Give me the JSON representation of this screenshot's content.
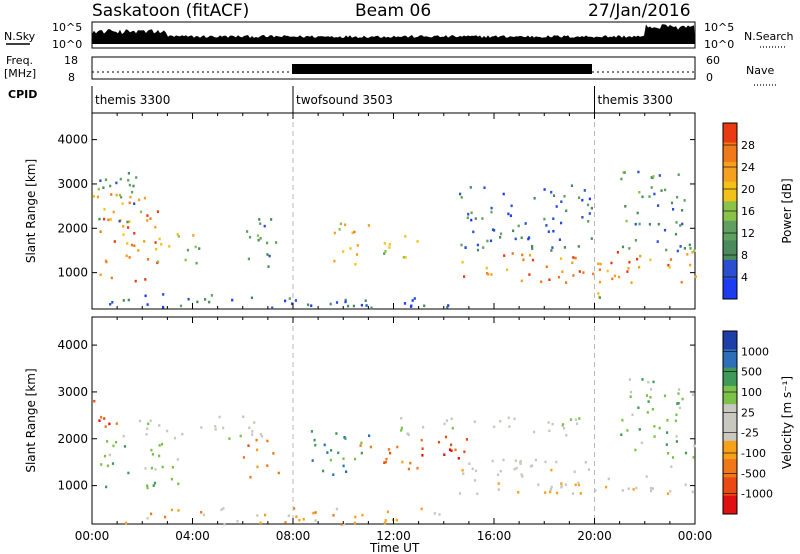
{
  "header": {
    "station": "Saskatoon (fitACF)",
    "beam": "Beam 06",
    "date": "27/Jan/2016"
  },
  "top_panels": {
    "nsky_label": "N.Sky",
    "nsky_ticks": [
      "10^5",
      "10^0"
    ],
    "nsearch_label": "N.Search",
    "freq_label_1": "Freq.",
    "freq_label_2": "[MHz]",
    "freq_ticks": [
      "18",
      "8"
    ],
    "nave_ticks": [
      "60",
      "0"
    ],
    "nave_label": "Nave",
    "cpid_label": "CPID",
    "cpid_segments": [
      {
        "name": "themis 3300",
        "start": 0,
        "end": 8
      },
      {
        "name": "twofsound 3503",
        "start": 8,
        "end": 20
      },
      {
        "name": "themis 3300",
        "start": 20,
        "end": 24
      }
    ]
  },
  "colors": {
    "power_scale": [
      "#1b3cf0",
      "#2a4fd0",
      "#4b8a5a",
      "#5fa060",
      "#8bc34a",
      "#f2c21a",
      "#f5a020",
      "#f07a1a",
      "#ea3a12"
    ],
    "velocity_scale": [
      "#1f3fa8",
      "#2c6fb8",
      "#3f9a5a",
      "#7cc24a",
      "#c8c8c0",
      "#c8c8c0",
      "#f7a01a",
      "#f07818",
      "#ea4a12",
      "#e01010"
    ],
    "grid_line": "#b8b8b8"
  },
  "chart_data": [
    {
      "type": "heatmap",
      "name": "power",
      "ylabel": "Slant Range [km]",
      "colorbar_label": "Power [dB]",
      "colorbar_ticks": [
        "28",
        "24",
        "20",
        "16",
        "12",
        "8",
        "4"
      ],
      "colorbar_range": [
        0,
        32
      ],
      "yticks": [
        "4000",
        "3000",
        "2000",
        "1000"
      ],
      "ylim": [
        180,
        4600
      ],
      "xlim": [
        0,
        24
      ],
      "scatter_regions": [
        {
          "t0": 0.0,
          "t1": 2.6,
          "r0": 800,
          "r1": 2800,
          "level": 26
        },
        {
          "t0": 0.2,
          "t1": 2.0,
          "r0": 2000,
          "r1": 3300,
          "level": 10
        },
        {
          "t0": 2.4,
          "t1": 4.4,
          "r0": 1100,
          "r1": 1900,
          "level": 16
        },
        {
          "t0": 6.0,
          "t1": 7.4,
          "r0": 1000,
          "r1": 2300,
          "level": 12
        },
        {
          "t0": 9.4,
          "t1": 11.0,
          "r0": 1200,
          "r1": 2200,
          "level": 20
        },
        {
          "t0": 11.3,
          "t1": 13.2,
          "r0": 1300,
          "r1": 1900,
          "level": 16
        },
        {
          "t0": 14.6,
          "t1": 24.0,
          "r0": 800,
          "r1": 1500,
          "level": 26
        },
        {
          "t0": 14.6,
          "t1": 20.0,
          "r0": 1500,
          "r1": 3000,
          "level": 8
        },
        {
          "t0": 19.8,
          "t1": 21.0,
          "r0": 400,
          "r1": 700,
          "level": 16
        },
        {
          "t0": 21.0,
          "t1": 24.0,
          "r0": 1500,
          "r1": 3300,
          "level": 10
        },
        {
          "t0": 0.6,
          "t1": 14.5,
          "r0": 200,
          "r1": 550,
          "level": 6
        }
      ]
    },
    {
      "type": "heatmap",
      "name": "velocity",
      "ylabel": "Slant Range [km]",
      "xlabel": "Time UT",
      "colorbar_label": "Velocity [m s⁻¹]",
      "colorbar_ticks": [
        "1000",
        "500",
        "100",
        "25",
        "-25",
        "-100",
        "-500",
        "-1000"
      ],
      "yticks": [
        "4000",
        "3000",
        "2000",
        "1000"
      ],
      "xticks": [
        "00:00",
        "04:00",
        "08:00",
        "12:00",
        "16:00",
        "20:00",
        "00:00"
      ],
      "ylim": [
        180,
        4600
      ],
      "xlim": [
        0,
        24
      ],
      "scatter_regions": [
        {
          "t0": 0.0,
          "t1": 1.0,
          "r0": 2100,
          "r1": 2900,
          "level": 8
        },
        {
          "t0": 0.3,
          "t1": 3.4,
          "r0": 900,
          "r1": 2000,
          "level": 3
        },
        {
          "t0": 1.0,
          "t1": 6.8,
          "r0": 2000,
          "r1": 2500,
          "level": 4
        },
        {
          "t0": 6.0,
          "t1": 7.5,
          "r0": 1200,
          "r1": 2000,
          "level": 7
        },
        {
          "t0": 8.5,
          "t1": 11.0,
          "r0": 1200,
          "r1": 2200,
          "level": 2
        },
        {
          "t0": 10.6,
          "t1": 13.2,
          "r0": 1300,
          "r1": 1900,
          "level": 7
        },
        {
          "t0": 13.0,
          "t1": 15.0,
          "r0": 1600,
          "r1": 2300,
          "level": 8
        },
        {
          "t0": 14.6,
          "t1": 24.0,
          "r0": 800,
          "r1": 1600,
          "level": 5
        },
        {
          "t0": 11.5,
          "t1": 20.0,
          "r0": 2100,
          "r1": 2500,
          "level": 4
        },
        {
          "t0": 21.0,
          "t1": 24.0,
          "r0": 1600,
          "r1": 3300,
          "level": 3
        },
        {
          "t0": 0.6,
          "t1": 14.0,
          "r0": 200,
          "r1": 550,
          "level": 6
        }
      ]
    }
  ]
}
